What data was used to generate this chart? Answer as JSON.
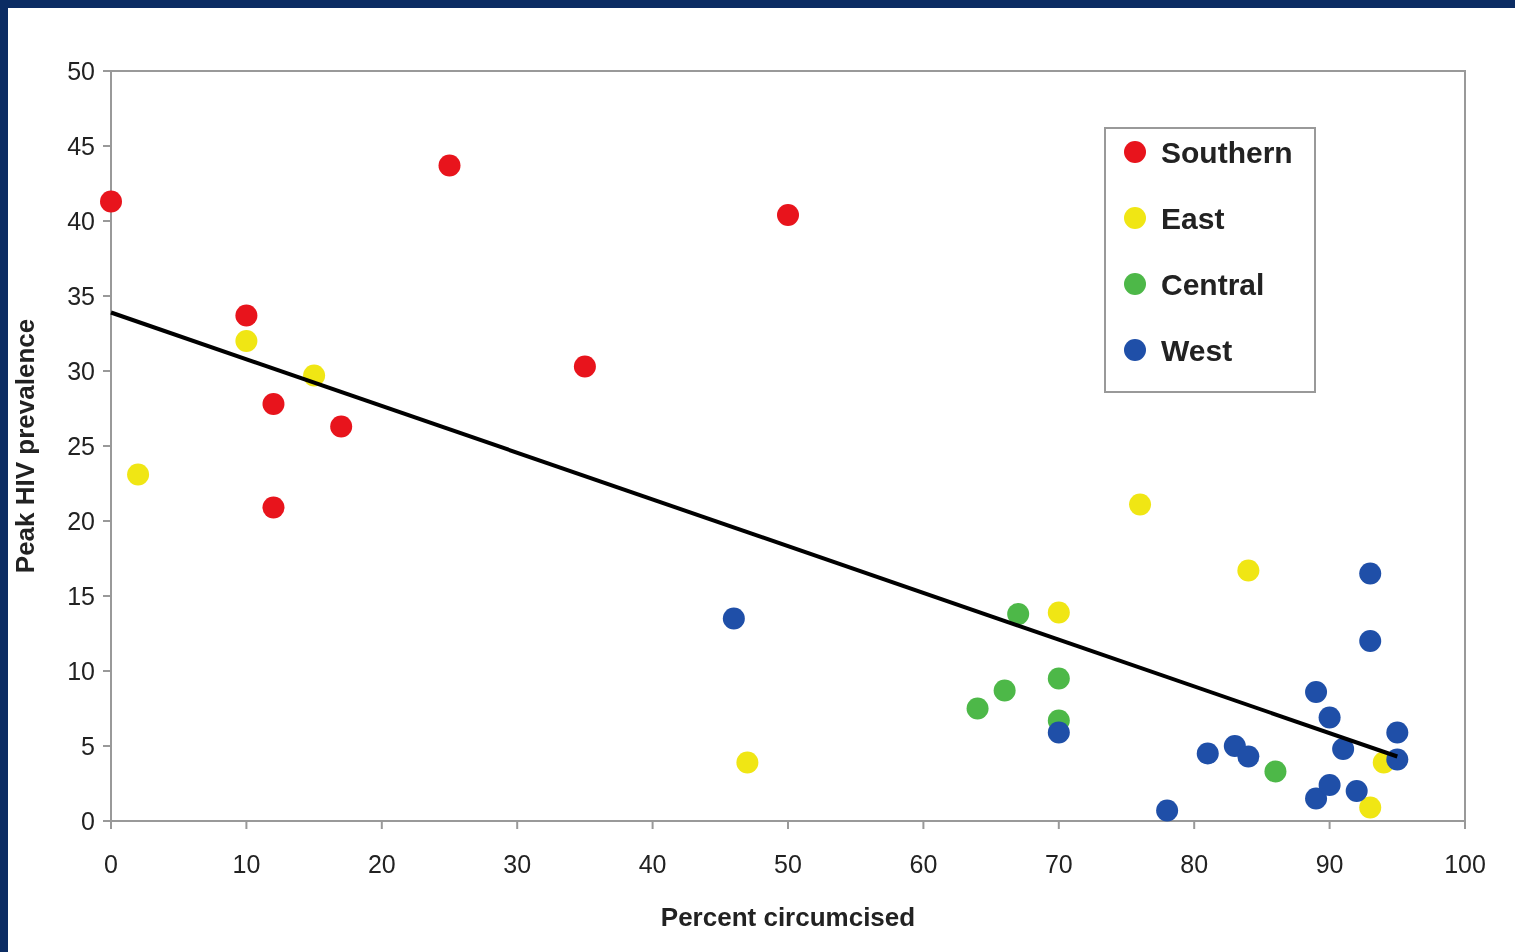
{
  "chart_data": {
    "type": "scatter",
    "xlabel": "Percent circumcised",
    "ylabel": "Peak HIV prevalence",
    "xlim": [
      0,
      100
    ],
    "xticks": [
      0,
      10,
      20,
      30,
      40,
      50,
      60,
      70,
      80,
      90,
      100
    ],
    "ylim": [
      0,
      50
    ],
    "yticks": [
      0,
      5,
      10,
      15,
      20,
      25,
      30,
      35,
      40,
      45,
      50
    ],
    "grid": false,
    "legend": "top right",
    "marker": "circle",
    "series": [
      {
        "name": "Southern",
        "color": "#e8141c",
        "x": [
          0,
          25,
          50,
          10,
          12,
          17,
          12,
          35
        ],
        "values": [
          41.3,
          43.7,
          40.4,
          33.7,
          27.8,
          26.3,
          20.9,
          30.3
        ]
      },
      {
        "name": "East",
        "color": "#f0e614",
        "x": [
          2,
          10,
          15,
          47,
          76,
          84,
          70,
          94,
          93
        ],
        "values": [
          23.1,
          32.0,
          29.7,
          3.9,
          21.1,
          16.7,
          13.9,
          3.9,
          0.9
        ]
      },
      {
        "name": "Central",
        "color": "#4db848",
        "x": [
          67,
          64,
          66,
          70,
          70,
          86
        ],
        "values": [
          13.8,
          7.5,
          8.7,
          9.5,
          6.7,
          3.3
        ]
      },
      {
        "name": "West",
        "color": "#1f4fa8",
        "x": [
          46,
          70,
          78,
          81,
          83,
          84,
          89,
          90,
          91,
          89,
          90,
          92,
          93,
          93,
          95,
          95
        ],
        "values": [
          13.5,
          5.9,
          0.7,
          4.5,
          5.0,
          4.3,
          8.6,
          6.9,
          4.8,
          1.5,
          2.4,
          2.0,
          16.5,
          12.0,
          5.9,
          4.1
        ]
      },
      {
        "type": "line",
        "color": "#000000",
        "marker": "none",
        "x": [
          0,
          95
        ],
        "values": [
          33.9,
          4.3
        ]
      }
    ]
  }
}
